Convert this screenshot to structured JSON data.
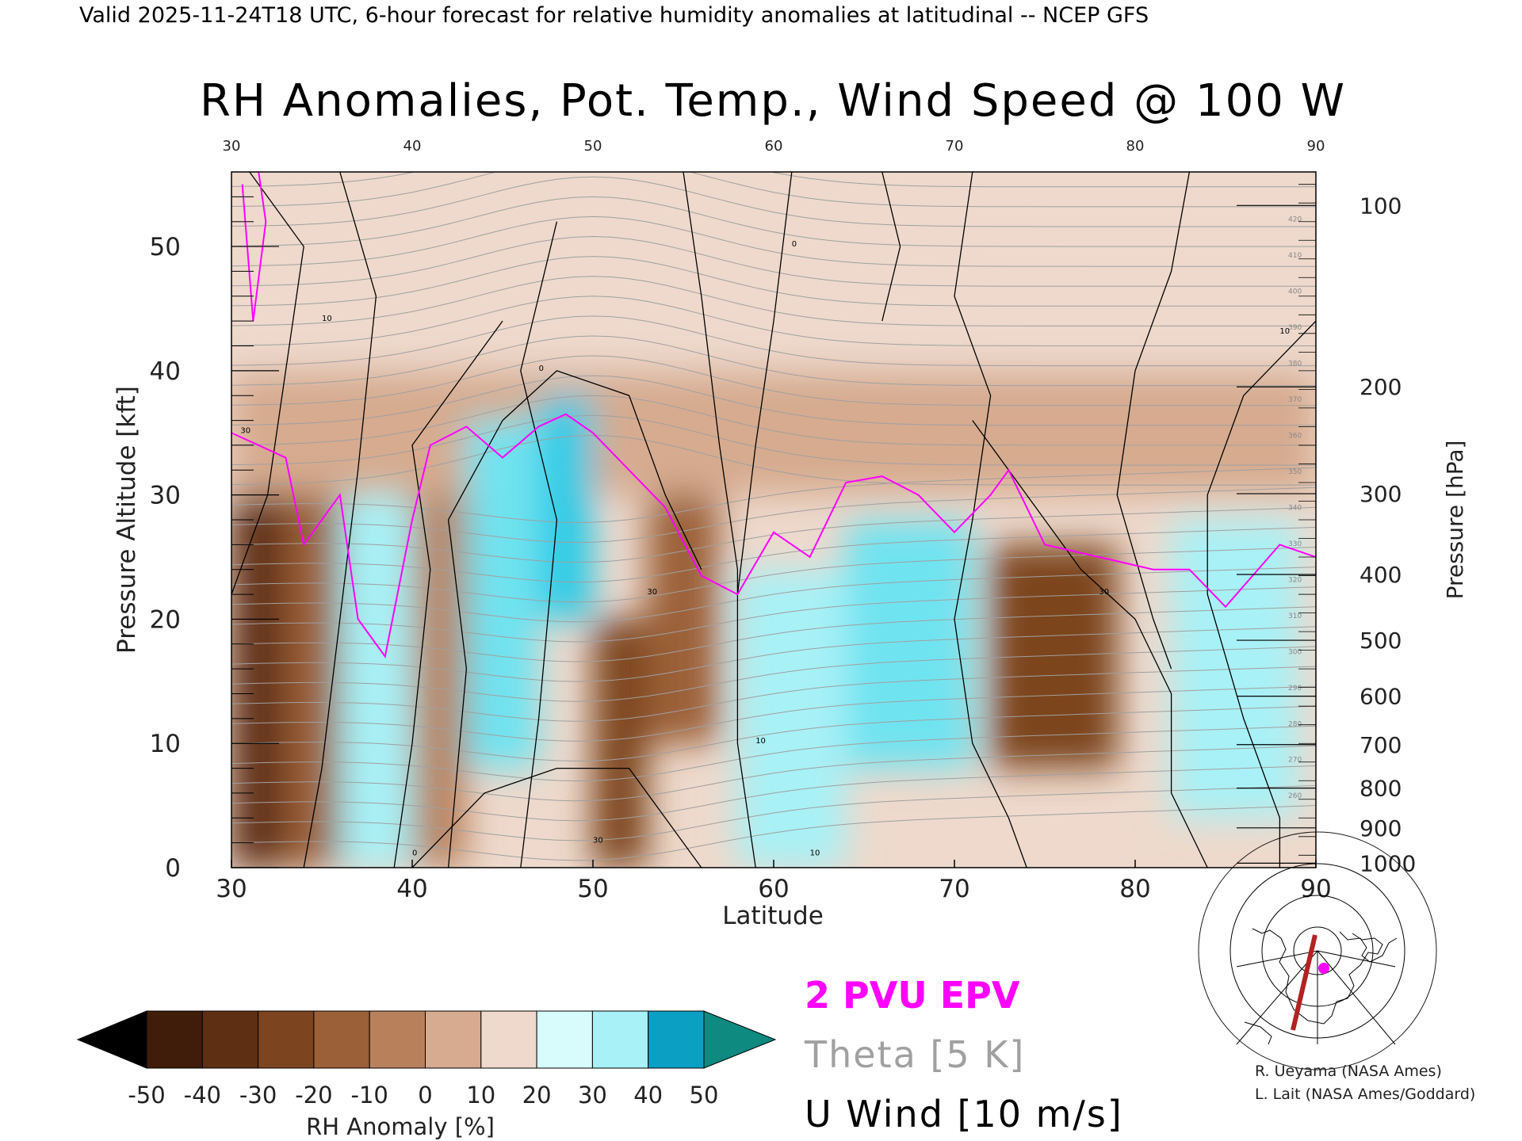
{
  "header": {
    "valid_line": "Valid 2025-11-24T18 UTC, 6-hour forecast for relative humidity anomalies at latitudinal -- NCEP GFS"
  },
  "chart_data": {
    "type": "heatmap",
    "title": "RH Anomalies, Pot. Temp., Wind Speed @ 100 W",
    "xlabel": "Latitude",
    "ylabel_left": "Pressure Altitude [kft]",
    "ylabel_right": "Pressure [hPa]",
    "xlim": [
      30,
      90
    ],
    "ylim": [
      0,
      56
    ],
    "x_ticks": [
      30,
      40,
      50,
      60,
      70,
      80,
      90
    ],
    "x_tick_labels": [
      "30",
      "40",
      "50",
      "60",
      "70",
      "80",
      "90"
    ],
    "y_ticks": [
      0,
      10,
      20,
      30,
      40,
      50
    ],
    "y_tick_labels": [
      "0",
      "10",
      "20",
      "30",
      "40",
      "50"
    ],
    "pressure_ticks": [
      {
        "label": "100",
        "kft": 53.3
      },
      {
        "label": "200",
        "kft": 38.7
      },
      {
        "label": "300",
        "kft": 30.1
      },
      {
        "label": "400",
        "kft": 23.6
      },
      {
        "label": "500",
        "kft": 18.3
      },
      {
        "label": "600",
        "kft": 13.8
      },
      {
        "label": "700",
        "kft": 9.9
      },
      {
        "label": "800",
        "kft": 6.4
      },
      {
        "label": "900",
        "kft": 3.2
      },
      {
        "label": "1000",
        "kft": 0.36
      }
    ],
    "grid": false,
    "rh_cells": [
      {
        "lat": [
          30,
          33
        ],
        "kft": [
          0,
          30
        ],
        "value": -45
      },
      {
        "lat": [
          33,
          36
        ],
        "kft": [
          0,
          30
        ],
        "value": -30
      },
      {
        "lat": [
          36,
          40
        ],
        "kft": [
          0,
          30
        ],
        "value": 25
      },
      {
        "lat": [
          40,
          43
        ],
        "kft": [
          0,
          30
        ],
        "value": -15
      },
      {
        "lat": [
          43,
          47
        ],
        "kft": [
          8,
          36
        ],
        "value": 35
      },
      {
        "lat": [
          47,
          50
        ],
        "kft": [
          20,
          38
        ],
        "value": 45
      },
      {
        "lat": [
          50,
          53
        ],
        "kft": [
          0,
          20
        ],
        "value": -35
      },
      {
        "lat": [
          53,
          57
        ],
        "kft": [
          10,
          30
        ],
        "value": -30
      },
      {
        "lat": [
          58,
          64
        ],
        "kft": [
          0,
          24
        ],
        "value": 20
      },
      {
        "lat": [
          64,
          71
        ],
        "kft": [
          8,
          28
        ],
        "value": 30
      },
      {
        "lat": [
          72,
          79
        ],
        "kft": [
          8,
          26
        ],
        "value": -35
      },
      {
        "lat": [
          82,
          89
        ],
        "kft": [
          4,
          28
        ],
        "value": 25
      },
      {
        "lat": [
          30,
          90
        ],
        "kft": [
          30,
          40
        ],
        "value": -10
      },
      {
        "lat": [
          30,
          90
        ],
        "kft": [
          40,
          56
        ],
        "value": 0
      }
    ],
    "colorbar": {
      "label": "RH Anomaly [%]",
      "ticks": [
        "-50",
        "-40",
        "-30",
        "-20",
        "-10",
        "0",
        "10",
        "20",
        "30",
        "40",
        "50"
      ],
      "colors": [
        "#3f1d0a",
        "#5e2f12",
        "#7c441f",
        "#9b6037",
        "#b8815c",
        "#d6ab8f",
        "#eed9cc",
        "#d8fbfb",
        "#a8f1f6",
        "#6fe3f0",
        "#2ccbe6",
        "#0b9fc4"
      ],
      "under_color": "#000000",
      "over_color": "#0f8a80"
    },
    "contour_labels_theta": [
      "420",
      "410",
      "400",
      "390",
      "380",
      "370",
      "360",
      "350",
      "340",
      "330",
      "320",
      "310",
      "300",
      "290",
      "280",
      "270",
      "260"
    ],
    "contour_labels_wind": [
      "30",
      "10",
      "0"
    ],
    "epv_2pvu_line": [
      {
        "lat": 30,
        "kft": 35
      },
      {
        "lat": 33,
        "kft": 33
      },
      {
        "lat": 34,
        "kft": 26
      },
      {
        "lat": 36,
        "kft": 30
      },
      {
        "lat": 37,
        "kft": 20
      },
      {
        "lat": 38.5,
        "kft": 17
      },
      {
        "lat": 40,
        "kft": 28
      },
      {
        "lat": 41,
        "kft": 34
      },
      {
        "lat": 43,
        "kft": 35.5
      },
      {
        "lat": 45,
        "kft": 33
      },
      {
        "lat": 47,
        "kft": 35.5
      },
      {
        "lat": 48.5,
        "kft": 36.5
      },
      {
        "lat": 50,
        "kft": 35
      },
      {
        "lat": 52,
        "kft": 32
      },
      {
        "lat": 54,
        "kft": 29
      },
      {
        "lat": 56,
        "kft": 23.5
      },
      {
        "lat": 58,
        "kft": 22
      },
      {
        "lat": 60,
        "kft": 27
      },
      {
        "lat": 62,
        "kft": 25
      },
      {
        "lat": 64,
        "kft": 31
      },
      {
        "lat": 66,
        "kft": 31.5
      },
      {
        "lat": 68,
        "kft": 30
      },
      {
        "lat": 70,
        "kft": 27
      },
      {
        "lat": 72,
        "kft": 30
      },
      {
        "lat": 73,
        "kft": 32
      },
      {
        "lat": 75,
        "kft": 26
      },
      {
        "lat": 78,
        "kft": 25
      },
      {
        "lat": 81,
        "kft": 24
      },
      {
        "lat": 83,
        "kft": 24
      },
      {
        "lat": 85,
        "kft": 21
      },
      {
        "lat": 88,
        "kft": 26
      },
      {
        "lat": 90,
        "kft": 25
      }
    ],
    "legend": {
      "epv": "2 PVU EPV",
      "theta": "Theta [5 K]",
      "wind": "U Wind [10 m/s]",
      "epv_color": "#ff00ff",
      "theta_color": "#a0a0a0",
      "wind_color": "#000000"
    }
  },
  "credits": {
    "line1": "R. Ueyama (NASA Ames)",
    "line2": "L. Lait (NASA Ames/Goddard)"
  },
  "colors": {
    "background": "#ffffff",
    "map_track": "#b22222",
    "map_marker": "#ff00ff"
  }
}
